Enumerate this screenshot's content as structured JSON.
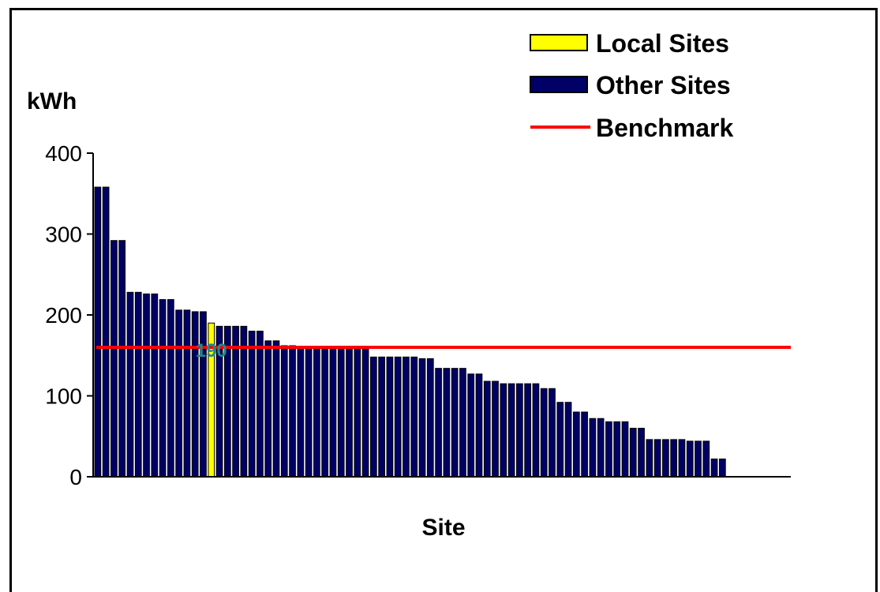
{
  "chart_data": {
    "type": "bar",
    "ylabel": "kWh",
    "xlabel": "Site",
    "ylim": [
      0,
      400
    ],
    "yticks": [
      0,
      100,
      200,
      300,
      400
    ],
    "legend": {
      "position": "top-right",
      "entries": [
        {
          "label": "Local Sites",
          "color": "#ffff00"
        },
        {
          "label": "Other Sites",
          "color": "#000066"
        },
        {
          "label": "Benchmark",
          "color": "#ff0000"
        }
      ]
    },
    "benchmark": 160,
    "highlight_label": "190",
    "series": [
      {
        "values": [
          358,
          358,
          292,
          292,
          228,
          228,
          226,
          226,
          219,
          219,
          206,
          206,
          204,
          204,
          190,
          186,
          186,
          186,
          186,
          180,
          180,
          168,
          168,
          162,
          162,
          160,
          160,
          160,
          160,
          160,
          160,
          160,
          160,
          160,
          148,
          148,
          148,
          148,
          148,
          148,
          146,
          146,
          134,
          134,
          134,
          134,
          127,
          127,
          118,
          118,
          115,
          115,
          115,
          115,
          115,
          109,
          109,
          92,
          92,
          80,
          80,
          72,
          72,
          68,
          68,
          68,
          60,
          60,
          46,
          46,
          46,
          46,
          46,
          44,
          44,
          44,
          22,
          22
        ],
        "colors_index_local": [
          14
        ]
      }
    ],
    "n_slots": 86
  }
}
